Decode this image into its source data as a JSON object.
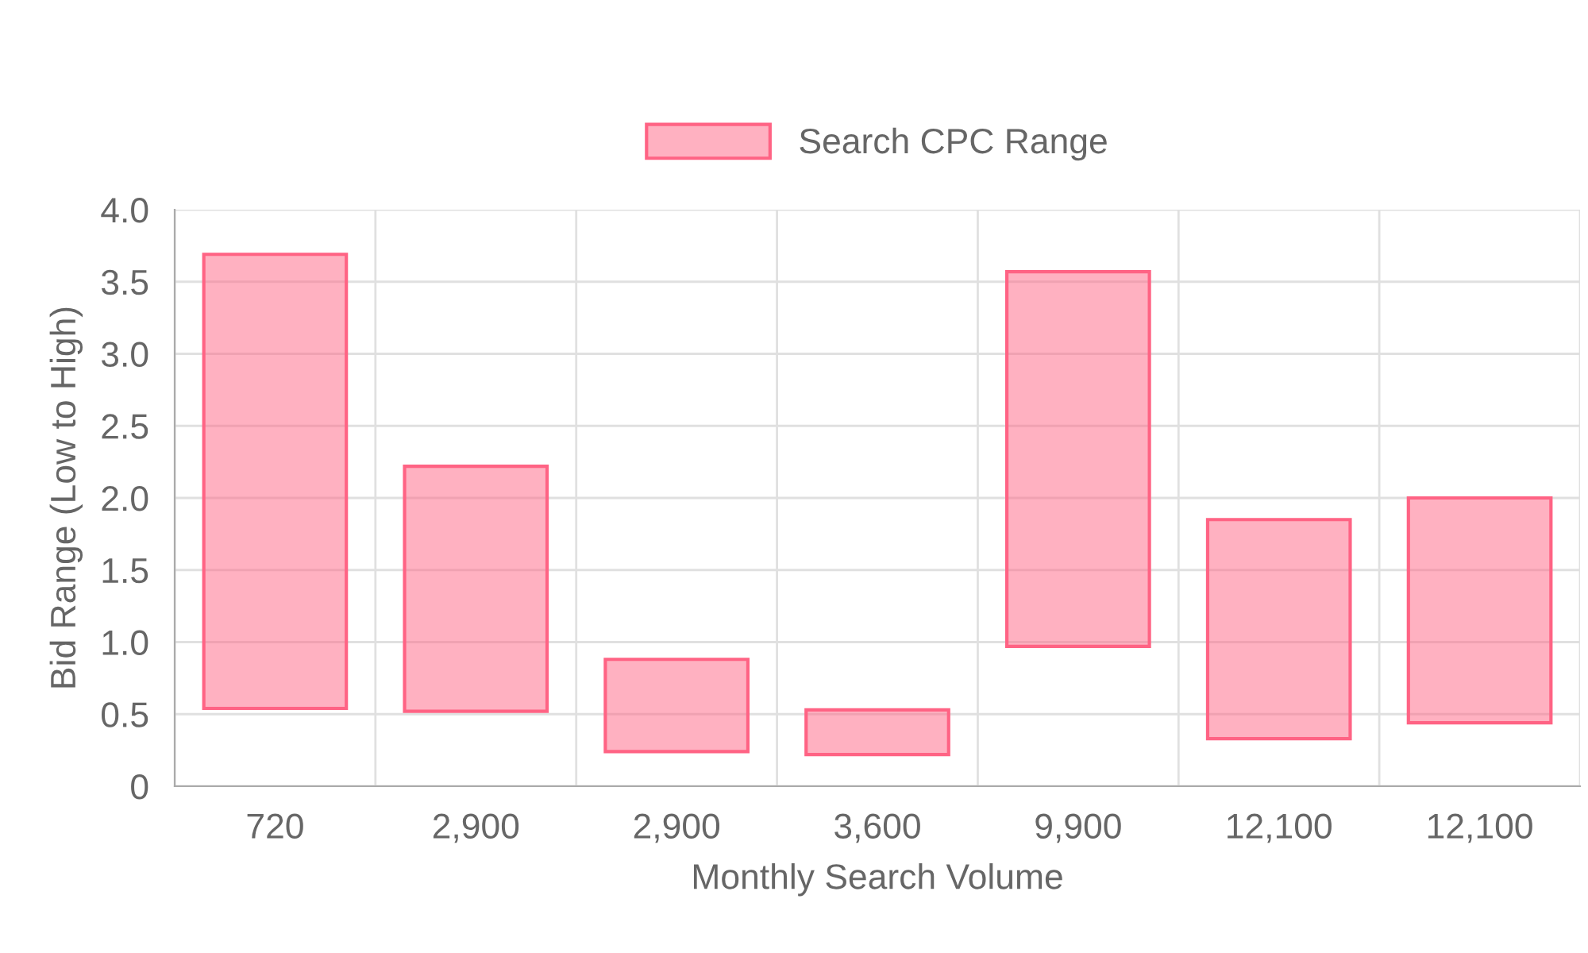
{
  "chart_data": {
    "type": "bar",
    "xlabel": "Monthly Search Volume",
    "ylabel": "Bid Range (Low to High)",
    "categories": [
      "720",
      "2,900",
      "2,900",
      "3,600",
      "9,900",
      "12,100",
      "12,100"
    ],
    "series": [
      {
        "name": "Search CPC Range",
        "color": "#ff6384",
        "base": [
          0.54,
          0.52,
          0.24,
          0.22,
          0.97,
          0.33,
          0.44
        ],
        "values": [
          3.15,
          1.7,
          0.64,
          0.31,
          2.6,
          1.52,
          1.56
        ]
      }
    ],
    "ylim": [
      0,
      4.0
    ],
    "yticks": [
      0,
      0.5,
      {
        "value": 1.0,
        "label": "1.0"
      },
      1.5,
      {
        "value": 2.0,
        "label": "2.0"
      },
      2.5,
      {
        "value": 3.0,
        "label": "3.0"
      },
      3.5,
      {
        "value": 4.0,
        "label": "4.0"
      }
    ],
    "grid": true,
    "legend": "top"
  }
}
